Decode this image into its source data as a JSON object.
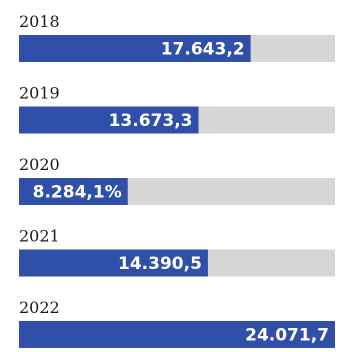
{
  "chart_data": {
    "type": "bar",
    "orientation": "horizontal",
    "categories": [
      "2018",
      "2019",
      "2020",
      "2021",
      "2022"
    ],
    "values": [
      17643.2,
      13673.3,
      8284.1,
      14390.5,
      24071.7
    ],
    "value_labels": [
      "17.643,2",
      "13.673,3",
      "8.284,1%",
      "14.390,5",
      "24.071,7"
    ],
    "xlim": [
      0,
      24071.7
    ],
    "grid": false,
    "legend": "none",
    "colors": {
      "bar": "#2f4fa8",
      "track": "#d6d6d6",
      "label_inside": "#ffffff",
      "label_outside": "#2b2b2b",
      "year_text": "#1a1a1a"
    }
  }
}
